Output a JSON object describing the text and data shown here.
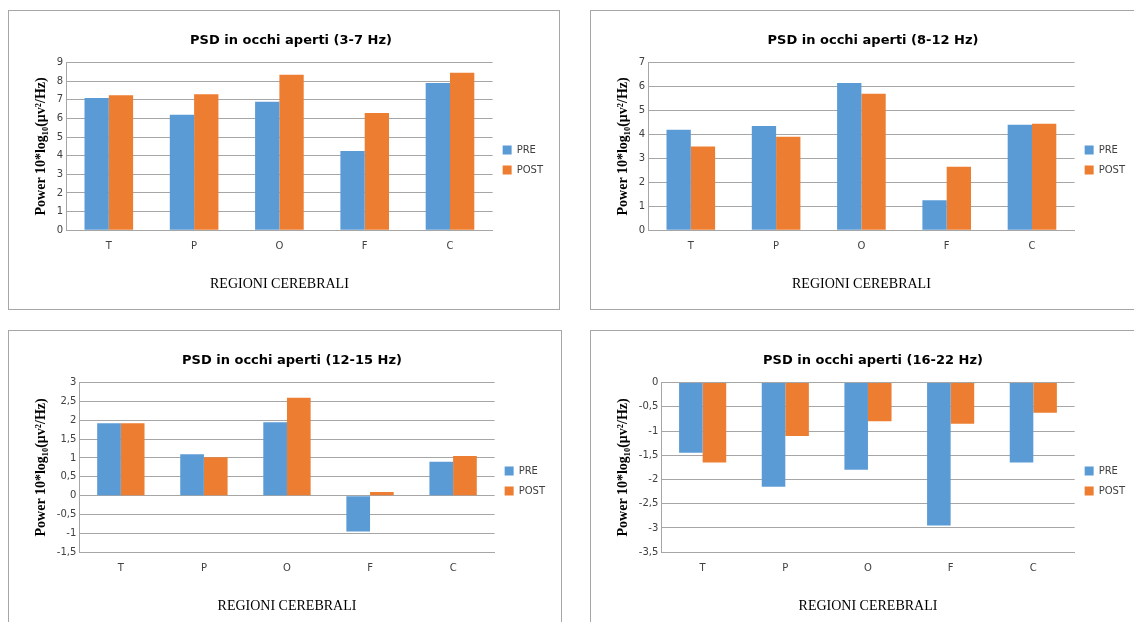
{
  "chart_data": [
    {
      "type": "bar",
      "title": "PSD in occhi aperti (3-7 Hz)",
      "xlabel": "REGIONI CEREBRALI",
      "ylabel": "Power 10*log₁₀(μv²/Hz)",
      "categories": [
        "T",
        "P",
        "O",
        "F",
        "C"
      ],
      "series": [
        {
          "name": "PRE",
          "color": "#5b9bd5",
          "values": [
            7.1,
            6.2,
            6.9,
            4.25,
            7.9
          ]
        },
        {
          "name": "POST",
          "color": "#ed7d31",
          "values": [
            7.25,
            7.3,
            8.35,
            6.3,
            8.45
          ]
        }
      ],
      "ylim": [
        0,
        9
      ],
      "yticks": [
        0,
        1,
        2,
        3,
        4,
        5,
        6,
        7,
        8,
        9
      ],
      "grid": "y",
      "legend": "right"
    },
    {
      "type": "bar",
      "title": "PSD in occhi aperti (8-12 Hz)",
      "xlabel": "REGIONI CEREBRALI",
      "ylabel": "Power 10*log₁₀(μv²/Hz)",
      "categories": [
        "T",
        "P",
        "O",
        "F",
        "C"
      ],
      "series": [
        {
          "name": "PRE",
          "color": "#5b9bd5",
          "values": [
            4.2,
            4.35,
            6.15,
            1.25,
            4.4
          ]
        },
        {
          "name": "POST",
          "color": "#ed7d31",
          "values": [
            3.5,
            3.9,
            5.7,
            2.65,
            4.45
          ]
        }
      ],
      "ylim": [
        0,
        7
      ],
      "yticks": [
        0,
        1,
        2,
        3,
        4,
        5,
        6,
        7
      ],
      "grid": "y",
      "legend": "right"
    },
    {
      "type": "bar",
      "title": "PSD in occhi aperti (12-15 Hz)",
      "xlabel": "REGIONI CEREBRALI",
      "ylabel": "Power 10*log₁₀(μv²/Hz)",
      "categories": [
        "T",
        "P",
        "O",
        "F",
        "C"
      ],
      "series": [
        {
          "name": "PRE",
          "color": "#5b9bd5",
          "values": [
            1.92,
            1.1,
            1.95,
            -0.95,
            0.9
          ]
        },
        {
          "name": "POST",
          "color": "#ed7d31",
          "values": [
            1.92,
            1.02,
            2.6,
            0.1,
            1.05
          ]
        }
      ],
      "ylim": [
        -1.5,
        3
      ],
      "yticks": [
        {
          "value": -1.5,
          "label": "-1,5"
        },
        -1,
        {
          "value": -0.5,
          "label": "-0,5"
        },
        0,
        {
          "value": 0.5,
          "label": "0,5"
        },
        1,
        {
          "value": 1.5,
          "label": "1,5"
        },
        2,
        {
          "value": 2.5,
          "label": "2,5"
        },
        3
      ],
      "grid": "y",
      "legend": "right"
    },
    {
      "type": "bar",
      "title": "PSD in occhi aperti (16-22 Hz)",
      "xlabel": "REGIONI CEREBRALI",
      "ylabel": "Power 10*log₁₀(μv²/Hz)",
      "categories": [
        "T",
        "P",
        "O",
        "F",
        "C"
      ],
      "series": [
        {
          "name": "PRE",
          "color": "#5b9bd5",
          "values": [
            -1.45,
            -2.15,
            -1.8,
            -2.95,
            -1.65
          ]
        },
        {
          "name": "POST",
          "color": "#ed7d31",
          "values": [
            -1.65,
            -1.1,
            -0.8,
            -0.85,
            -0.62
          ]
        }
      ],
      "ylim": [
        -3.5,
        0
      ],
      "yticks": [
        {
          "value": -3.5,
          "label": "-3,5"
        },
        -3,
        {
          "value": -2.5,
          "label": "-2,5"
        },
        -2,
        {
          "value": -1.5,
          "label": "-1,5"
        },
        -1,
        {
          "value": -0.5,
          "label": "-0,5"
        },
        0
      ],
      "grid": "y",
      "legend": "right"
    }
  ]
}
